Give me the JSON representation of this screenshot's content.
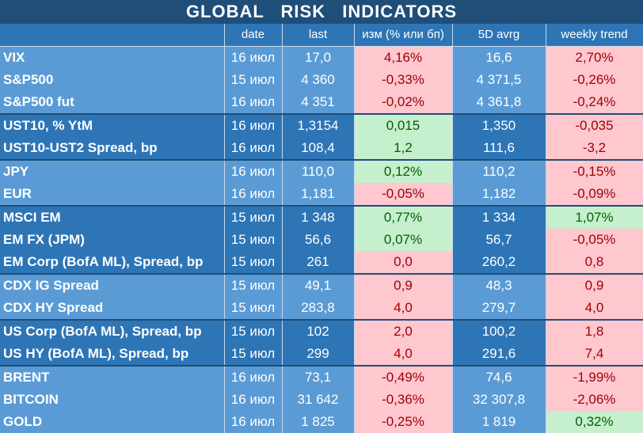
{
  "title": "GLOBAL   RISK   INDICATORS",
  "headers": [
    "",
    "date",
    "last",
    "изм (% или бп)",
    "5D avrg",
    "weekly trend"
  ],
  "colors": {
    "positive_bg": "#c6efce",
    "positive_text": "#006100",
    "negative_bg": "#ffc7ce",
    "negative_text": "#9c0006",
    "light_blue": "#5b9bd5",
    "dark_blue": "#2e75b6",
    "title_bg": "#1f4e79"
  },
  "rows": [
    {
      "name": "VIX",
      "date": "16 июл",
      "last": "17,0",
      "change": "4,16%",
      "change_dir": "neg",
      "avg": "16,6",
      "trend": "2,70%",
      "trend_dir": "neg",
      "group": 0,
      "gstart": true
    },
    {
      "name": "S&P500",
      "date": "15 июл",
      "last": "4 360",
      "change": "-0,33%",
      "change_dir": "neg",
      "avg": "4 371,5",
      "trend": "-0,26%",
      "trend_dir": "neg",
      "group": 0,
      "gstart": false
    },
    {
      "name": "S&P500 fut",
      "date": "16 июл",
      "last": "4 351",
      "change": "-0,02%",
      "change_dir": "neg",
      "avg": "4 361,8",
      "trend": "-0,24%",
      "trend_dir": "neg",
      "group": 0,
      "gstart": false
    },
    {
      "name": "UST10, % YtM",
      "date": "16 июл",
      "last": "1,3154",
      "change": "0,015",
      "change_dir": "pos",
      "avg": "1,350",
      "trend": "-0,035",
      "trend_dir": "neg",
      "group": 1,
      "gstart": true
    },
    {
      "name": "UST10-UST2 Spread, bp",
      "date": "16 июл",
      "last": "108,4",
      "change": "1,2",
      "change_dir": "pos",
      "avg": "111,6",
      "trend": "-3,2",
      "trend_dir": "neg",
      "group": 1,
      "gstart": false
    },
    {
      "name": "JPY",
      "date": "16 июл",
      "last": "110,0",
      "change": "0,12%",
      "change_dir": "pos",
      "avg": "110,2",
      "trend": "-0,15%",
      "trend_dir": "neg",
      "group": 0,
      "gstart": true
    },
    {
      "name": "EUR",
      "date": "16 июл",
      "last": "1,181",
      "change": "-0,05%",
      "change_dir": "neg",
      "avg": "1,182",
      "trend": "-0,09%",
      "trend_dir": "neg",
      "group": 0,
      "gstart": false
    },
    {
      "name": "MSCI EM",
      "date": "15 июл",
      "last": "1 348",
      "change": "0,77%",
      "change_dir": "pos",
      "avg": "1 334",
      "trend": "1,07%",
      "trend_dir": "pos",
      "group": 1,
      "gstart": true
    },
    {
      "name": "EM FX (JPM)",
      "date": "15 июл",
      "last": "56,6",
      "change": "0,07%",
      "change_dir": "pos",
      "avg": "56,7",
      "trend": "-0,05%",
      "trend_dir": "neg",
      "group": 1,
      "gstart": false
    },
    {
      "name": "EM Corp (BofA ML), Spread, bp",
      "date": "15 июл",
      "last": "261",
      "change": "0,0",
      "change_dir": "neg",
      "avg": "260,2",
      "trend": "0,8",
      "trend_dir": "neg",
      "group": 1,
      "gstart": false
    },
    {
      "name": "CDX IG Spread",
      "date": "15 июл",
      "last": "49,1",
      "change": "0,9",
      "change_dir": "neg",
      "avg": "48,3",
      "trend": "0,9",
      "trend_dir": "neg",
      "group": 0,
      "gstart": true
    },
    {
      "name": "CDX HY Spread",
      "date": "15 июл",
      "last": "283,8",
      "change": "4,0",
      "change_dir": "neg",
      "avg": "279,7",
      "trend": "4,0",
      "trend_dir": "neg",
      "group": 0,
      "gstart": false
    },
    {
      "name": "US Corp (BofA ML), Spread, bp",
      "date": "15 июл",
      "last": "102",
      "change": "2,0",
      "change_dir": "neg",
      "avg": "100,2",
      "trend": "1,8",
      "trend_dir": "neg",
      "group": 1,
      "gstart": true
    },
    {
      "name": "US HY (BofA ML), Spread, bp",
      "date": "15 июл",
      "last": "299",
      "change": "4,0",
      "change_dir": "neg",
      "avg": "291,6",
      "trend": "7,4",
      "trend_dir": "neg",
      "group": 1,
      "gstart": false
    },
    {
      "name": "BRENT",
      "date": "16 июл",
      "last": "73,1",
      "change": "-0,49%",
      "change_dir": "neg",
      "avg": "74,6",
      "trend": "-1,99%",
      "trend_dir": "neg",
      "group": 0,
      "gstart": true
    },
    {
      "name": "BITCOIN",
      "date": "16 июл",
      "last": "31 642",
      "change": "-0,36%",
      "change_dir": "neg",
      "avg": "32 307,8",
      "trend": "-2,06%",
      "trend_dir": "neg",
      "group": 0,
      "gstart": false
    },
    {
      "name": "GOLD",
      "date": "16 июл",
      "last": "1 825",
      "change": "-0,25%",
      "change_dir": "neg",
      "avg": "1 819",
      "trend": "0,32%",
      "trend_dir": "pos",
      "group": 0,
      "gstart": false
    }
  ]
}
